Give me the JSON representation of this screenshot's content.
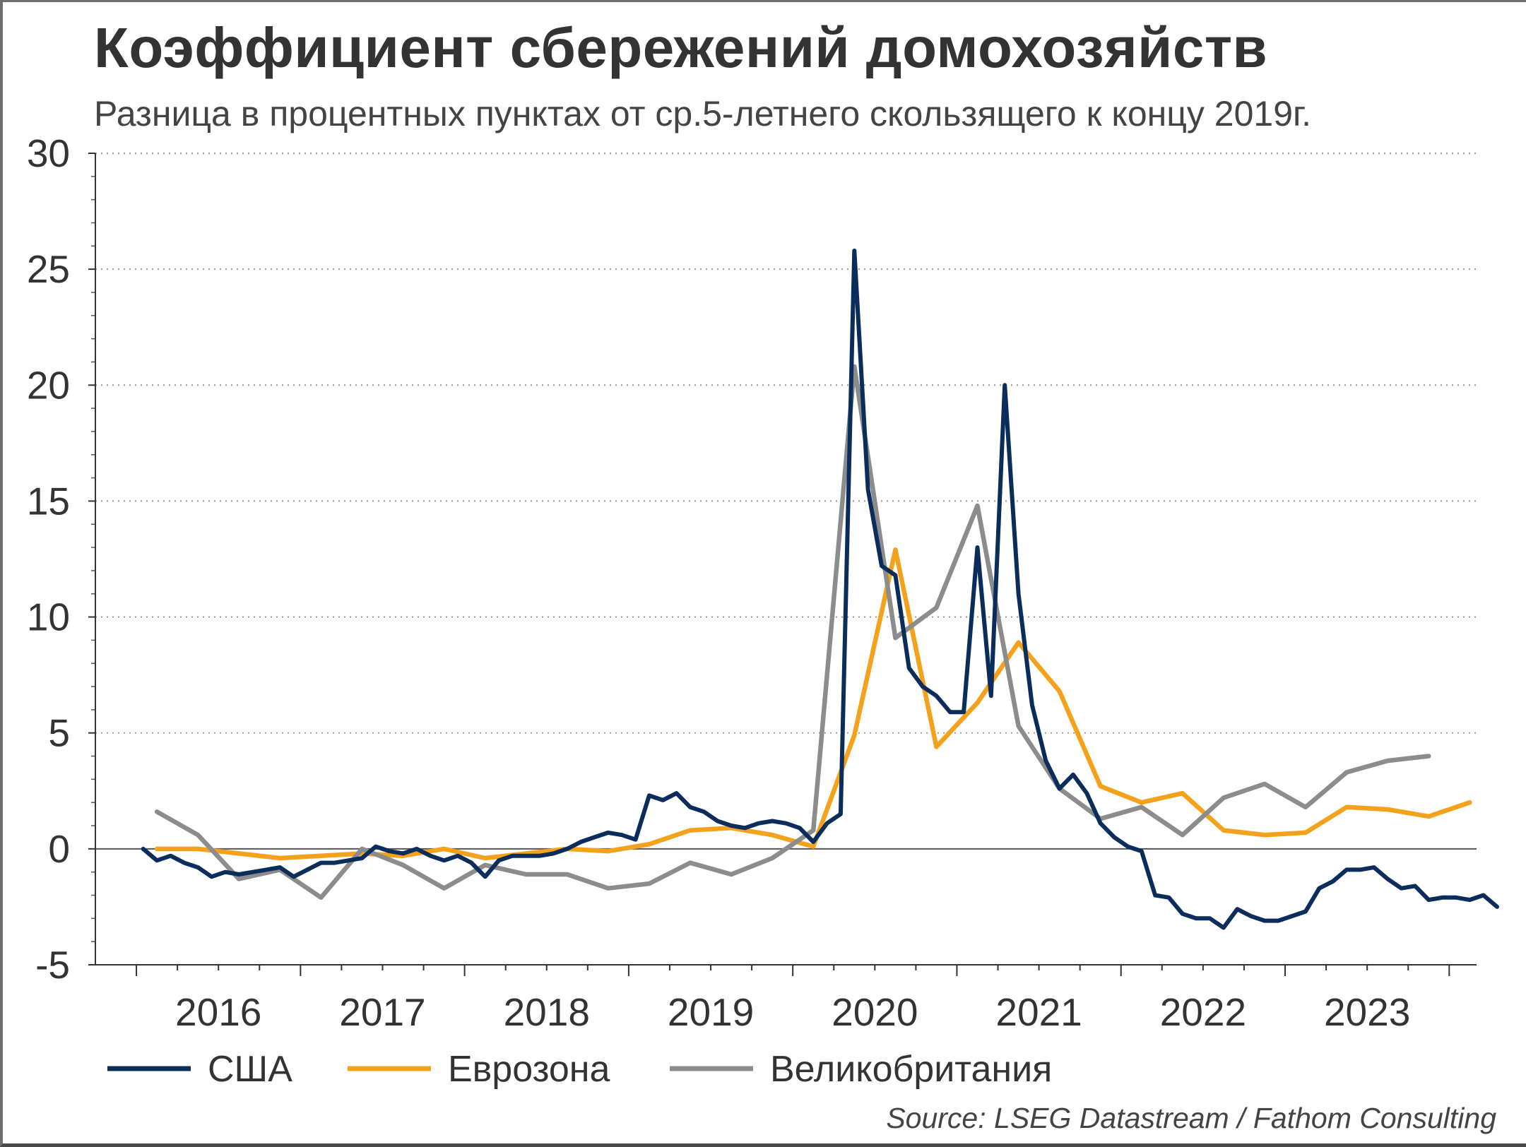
{
  "title": "Коэффициент сбережений домохозяйств",
  "subtitle": "Разница в процентных пунктах от ср.5-летнего скользящего к концу 2019г.",
  "source": "Source: LSEG Datastream / Fathom Consulting",
  "chart_data": {
    "type": "line",
    "title": "Коэффициент сбережений домохозяйств",
    "subtitle": "Разница в процентных пунктах от ср.5-летнего скользящего к концу 2019г.",
    "xlabel": "",
    "ylabel": "",
    "ylim": [
      -5,
      30
    ],
    "yticks": [
      -5,
      0,
      5,
      10,
      15,
      20,
      25,
      30
    ],
    "xlim": [
      "2015-10",
      "2024-03"
    ],
    "xticks": [
      "2016",
      "2017",
      "2018",
      "2019",
      "2020",
      "2021",
      "2022",
      "2023"
    ],
    "grid": "horizontal dotted",
    "legend": "bottom",
    "series": [
      {
        "name": "США",
        "color": "#0b2d5b",
        "frequency": "monthly",
        "start": "2016-01",
        "values": [
          0,
          -0.5,
          -0.3,
          -0.6,
          -0.8,
          -1.2,
          -1.0,
          -1.1,
          -1.0,
          -0.9,
          -0.8,
          -1.2,
          -0.9,
          -0.6,
          -0.6,
          -0.5,
          -0.4,
          0.1,
          -0.1,
          -0.2,
          0,
          -0.3,
          -0.5,
          -0.3,
          -0.6,
          -1.2,
          -0.5,
          -0.3,
          -0.3,
          -0.3,
          -0.2,
          0,
          0.3,
          0.5,
          0.7,
          0.6,
          0.4,
          2.3,
          2.1,
          2.4,
          1.8,
          1.6,
          1.2,
          1.0,
          0.9,
          1.1,
          1.2,
          1.1,
          0.9,
          0.3,
          1.1,
          1.5,
          25.8,
          15.5,
          12.2,
          11.8,
          7.8,
          7.0,
          6.6,
          5.9,
          5.9,
          13.0,
          6.6,
          20.0,
          11.0,
          6.2,
          3.8,
          2.6,
          3.2,
          2.4,
          1.1,
          0.5,
          0.1,
          -0.1,
          -2.0,
          -2.1,
          -2.8,
          -3.0,
          -3.0,
          -3.4,
          -2.6,
          -2.9,
          -3.1,
          -3.1,
          -2.9,
          -2.7,
          -1.7,
          -1.4,
          -0.9,
          -0.9,
          -0.8,
          -1.3,
          -1.7,
          -1.6,
          -2.2,
          -2.1,
          -2.1,
          -2.2,
          -2.0,
          -2.5
        ]
      },
      {
        "name": "Еврозона",
        "color": "#f4a21b",
        "frequency": "quarterly",
        "start": "2016-Q1",
        "values": [
          0,
          0,
          -0.2,
          -0.4,
          -0.3,
          -0.2,
          -0.3,
          0,
          -0.4,
          -0.2,
          0,
          -0.1,
          0.2,
          0.8,
          0.9,
          0.6,
          0.1,
          4.9,
          12.9,
          4.4,
          6.3,
          8.9,
          6.8,
          2.7,
          2.0,
          2.4,
          0.8,
          0.6,
          0.7,
          1.8,
          1.7,
          1.4,
          2.0
        ]
      },
      {
        "name": "Великобритания",
        "color": "#8c8c8c",
        "frequency": "quarterly",
        "start": "2016-Q1",
        "values": [
          1.6,
          0.6,
          -1.3,
          -0.9,
          -2.1,
          0,
          -0.7,
          -1.7,
          -0.7,
          -1.1,
          -1.1,
          -1.7,
          -1.5,
          -0.6,
          -1.1,
          -0.4,
          0.8,
          20.8,
          9.1,
          10.4,
          14.8,
          5.3,
          2.6,
          1.3,
          1.8,
          0.6,
          2.2,
          2.8,
          1.8,
          3.3,
          3.8,
          4.0
        ]
      }
    ]
  }
}
